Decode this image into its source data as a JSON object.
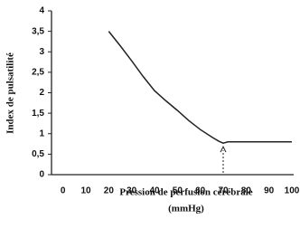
{
  "chart_data": {
    "type": "line",
    "ylabel": "Index de pulsatilité",
    "xlabel": [
      "Pression de perfusion cérébrale",
      "(mmHg)"
    ],
    "x": [
      20,
      25,
      30,
      35,
      40,
      45,
      50,
      55,
      60,
      65,
      68,
      70,
      72,
      75,
      80,
      90,
      100
    ],
    "values": [
      3.5,
      3.15,
      2.78,
      2.4,
      2.05,
      1.8,
      1.57,
      1.32,
      1.1,
      0.92,
      0.82,
      0.77,
      0.8,
      0.8,
      0.8,
      0.8,
      0.8
    ],
    "color": "#222222",
    "xlim": [
      -5,
      100
    ],
    "xticks": [
      0,
      10,
      20,
      30,
      40,
      50,
      60,
      70,
      80,
      90,
      100
    ],
    "ylim": [
      0,
      4
    ],
    "yticks": [
      0,
      {
        "value": 0.5,
        "label": "0,5"
      },
      1,
      {
        "value": 1.5,
        "label": "1,5"
      },
      2,
      {
        "value": 2.5,
        "label": "2,5"
      },
      3,
      {
        "value": 3.5,
        "label": "3,5"
      },
      4
    ],
    "grid": false
  }
}
